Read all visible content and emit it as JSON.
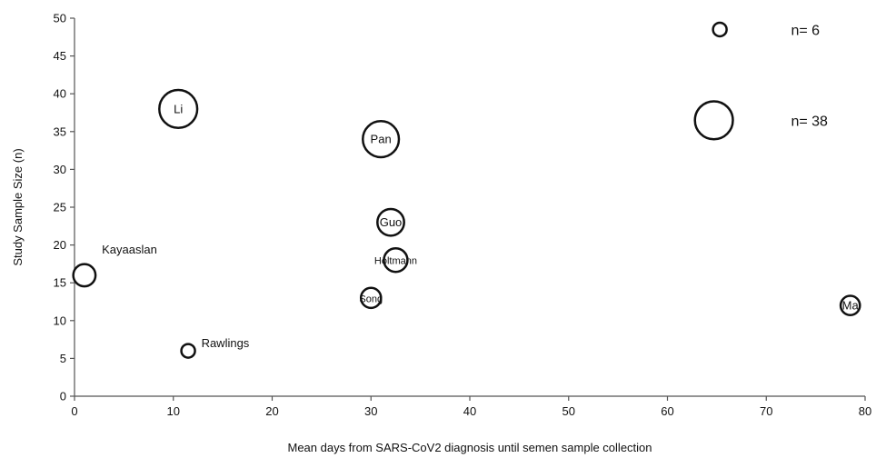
{
  "chart_data": {
    "type": "scatter",
    "title": "",
    "xlabel": "Mean days from SARS-CoV2 diagnosis until semen sample collection",
    "ylabel": "Study Sample  Size (n)",
    "xlim": [
      0,
      80
    ],
    "ylim": [
      0,
      50
    ],
    "xticks": [
      0,
      10,
      20,
      30,
      40,
      50,
      60,
      70,
      80
    ],
    "yticks": [
      0,
      5,
      10,
      15,
      20,
      25,
      30,
      35,
      40,
      45,
      50
    ],
    "grid": false,
    "points": [
      {
        "label": "Li",
        "x": 10.5,
        "y": 38,
        "size": 38
      },
      {
        "label": "Pan",
        "x": 31,
        "y": 34,
        "size": 34
      },
      {
        "label": "Guo",
        "x": 32,
        "y": 23,
        "size": 23
      },
      {
        "label": "Holtmann",
        "x": 32.5,
        "y": 18,
        "size": 18
      },
      {
        "label": "Song",
        "x": 30,
        "y": 13,
        "size": 13
      },
      {
        "label": "Kayaaslan",
        "x": 1,
        "y": 16,
        "size": 16
      },
      {
        "label": "Rawlings",
        "x": 11.5,
        "y": 6,
        "size": 6
      },
      {
        "label": "Ma",
        "x": 78.5,
        "y": 12,
        "size": 12
      }
    ],
    "size_legend": [
      {
        "label": "n= 6",
        "x": 65.3,
        "y": 48.5,
        "size": 6
      },
      {
        "label": "n= 38",
        "x": 64.7,
        "y": 36.5,
        "size": 38
      }
    ]
  }
}
